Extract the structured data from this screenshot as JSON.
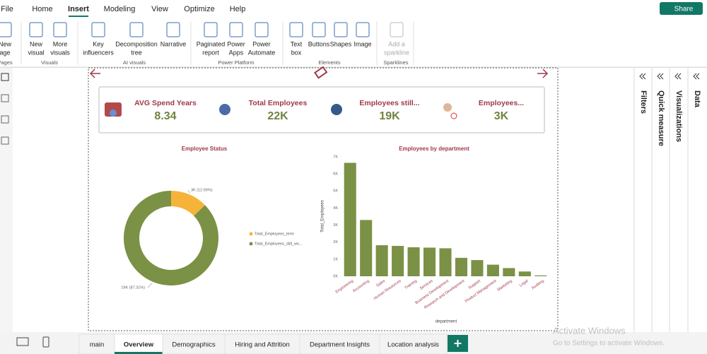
{
  "menu": [
    "File",
    "Home",
    "Insert",
    "Modeling",
    "View",
    "Optimize",
    "Help"
  ],
  "share": "Share",
  "ribbon": {
    "items": [
      {
        "lines": [
          "New",
          "age"
        ]
      },
      {
        "lines": [
          "New",
          "visual"
        ]
      },
      {
        "lines": [
          "More",
          "visuals"
        ]
      },
      {
        "lines": [
          "Key",
          "influencers"
        ]
      },
      {
        "lines": [
          "Decomposition",
          "tree"
        ]
      },
      {
        "lines": [
          "Narrative"
        ]
      },
      {
        "lines": [
          "Paginated",
          "report"
        ]
      },
      {
        "lines": [
          "Power",
          "Apps"
        ]
      },
      {
        "lines": [
          "Power",
          "Automate"
        ]
      },
      {
        "lines": [
          "Text",
          "box"
        ]
      },
      {
        "lines": [
          "Buttons"
        ]
      },
      {
        "lines": [
          "Shapes"
        ]
      },
      {
        "lines": [
          "Image"
        ]
      },
      {
        "lines": [
          "Add a",
          "sparkline"
        ]
      }
    ],
    "groups": [
      "Pages",
      "Visuals",
      "AI visuals",
      "Power Platform",
      "Elements",
      "Sparklines"
    ]
  },
  "kpis": [
    {
      "label": "AVG Spend Years",
      "value": "8.34"
    },
    {
      "label": "Total Employees",
      "value": "22K"
    },
    {
      "label": "Employees still...",
      "value": "19K"
    },
    {
      "label": "Employees...",
      "value": "3K"
    }
  ],
  "donut_chart": {
    "type": "donut",
    "title": "Employee Status",
    "categories": [
      "Total_Employees_term",
      "Total_Employees_still_wo..."
    ],
    "values": [
      12.69,
      87.31
    ],
    "value_labels": [
      "3K (12.69%)",
      "19K (87.31%)"
    ],
    "colors": [
      "#f6b33a",
      "#7b9145"
    ]
  },
  "bar_chart": {
    "type": "bar",
    "title": "Employees by department",
    "x_label": "department",
    "y_label": "Total_Employees",
    "categories": [
      "Engineering",
      "Accounting",
      "Sales",
      "Human Resources",
      "Training",
      "Services",
      "Business Development",
      "Research and Development",
      "Support",
      "Product Management",
      "Marketing",
      "Legal",
      "Auditing"
    ],
    "values": [
      6650,
      3300,
      1820,
      1780,
      1700,
      1680,
      1640,
      1080,
      950,
      680,
      480,
      280,
      50
    ],
    "color": "#7b9145",
    "ylim": [
      0,
      7000
    ],
    "yticks": [
      {
        "value": 0,
        "label": "0K"
      },
      {
        "value": 1000,
        "label": "1K"
      },
      {
        "value": 2000,
        "label": "2K"
      },
      {
        "value": 3000,
        "label": "3K"
      },
      {
        "value": 4000,
        "label": "4K"
      },
      {
        "value": 5000,
        "label": "5K"
      },
      {
        "value": 6000,
        "label": "6K"
      },
      {
        "value": 7000,
        "label": "7K"
      }
    ]
  },
  "panes": [
    "Filters",
    "Quick measure",
    "Visualizations",
    "Data"
  ],
  "tabs": [
    "main",
    "Overview",
    "Demographics",
    "Hiring and Attrition",
    "Department Insights",
    "Location analysis"
  ],
  "watermark": [
    "Activate Windows",
    "Go to Settings to activate Windows."
  ]
}
